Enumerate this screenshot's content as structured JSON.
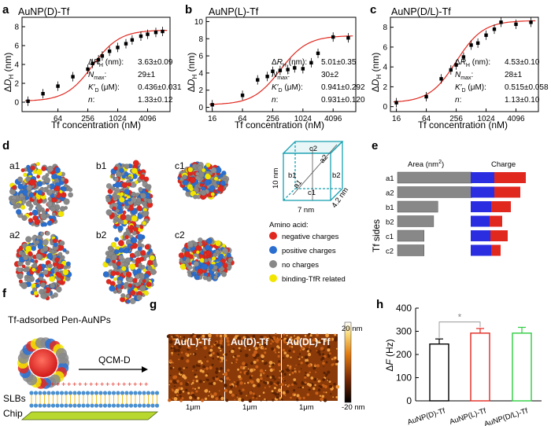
{
  "panel_letters": {
    "a": "a",
    "b": "b",
    "c": "c",
    "d": "d",
    "e": "e",
    "f": "f",
    "g": "g",
    "h": "h"
  },
  "chart_data": [
    {
      "id": "a",
      "type": "scatter",
      "title": "AuNP(D)-Tf",
      "xlabel": "Tf concentration (nM)",
      "ylabel": "ΔD_H (nm)",
      "xscale": "log2",
      "xticks": [
        "64",
        "256",
        "1024",
        "4096"
      ],
      "yticks": [
        "0",
        "2",
        "4",
        "6",
        "8"
      ],
      "ylim": [
        -1,
        9
      ],
      "points": [
        [
          16,
          0.1
        ],
        [
          32,
          0.9
        ],
        [
          64,
          1.7
        ],
        [
          128,
          2.7
        ],
        [
          256,
          3.5
        ],
        [
          320,
          4.1
        ],
        [
          420,
          4.5
        ],
        [
          500,
          4.9
        ],
        [
          700,
          5.4
        ],
        [
          1024,
          5.8
        ],
        [
          1500,
          6.2
        ],
        [
          2000,
          6.6
        ],
        [
          3000,
          7.0
        ],
        [
          4096,
          7.2
        ],
        [
          6000,
          7.4
        ],
        [
          8192,
          7.5
        ]
      ],
      "fit_params": [
        {
          "name": "ΔR_H (nm):",
          "value": "3.63±0.09"
        },
        {
          "name": "N_max:",
          "value": "29±1"
        },
        {
          "name": "K′_D (μM):",
          "value": "0.436±0.031"
        },
        {
          "name": "n:",
          "value": "1.33±0.12"
        }
      ]
    },
    {
      "id": "b",
      "type": "scatter",
      "title": "AuNP(L)-Tf",
      "xlabel": "Tf concentration (nM)",
      "ylabel": "ΔD_H (nm)",
      "xscale": "log2",
      "xticks": [
        "16",
        "64",
        "256",
        "1024",
        "4096"
      ],
      "yticks": [
        "0",
        "2",
        "4",
        "6",
        "8",
        "10"
      ],
      "ylim": [
        -0.5,
        10.5
      ],
      "points": [
        [
          16,
          0.3
        ],
        [
          64,
          1.4
        ],
        [
          128,
          3.2
        ],
        [
          200,
          3.6
        ],
        [
          256,
          4.2
        ],
        [
          360,
          4.3
        ],
        [
          512,
          4.4
        ],
        [
          700,
          4.6
        ],
        [
          1024,
          4.5
        ],
        [
          1500,
          5.2
        ],
        [
          2048,
          6.3
        ],
        [
          4096,
          8.2
        ],
        [
          8192,
          8.1
        ]
      ],
      "fit_params": [
        {
          "name": "ΔR_H (nm):",
          "value": "5.01±0.35"
        },
        {
          "name": "N_max:",
          "value": "30±2"
        },
        {
          "name": "K′_D (μM):",
          "value": "0.941±0.292"
        },
        {
          "name": "n:",
          "value": "0.931±0.120"
        }
      ]
    },
    {
      "id": "c",
      "type": "scatter",
      "title": "AuNP(D/L)-Tf",
      "xlabel": "Tf concentration (nM)",
      "ylabel": "ΔD_H (nm)",
      "xscale": "log2",
      "xticks": [
        "16",
        "64",
        "256",
        "1024",
        "4096"
      ],
      "yticks": [
        "0",
        "2",
        "4",
        "6",
        "8"
      ],
      "ylim": [
        -0.5,
        9
      ],
      "points": [
        [
          16,
          0.4
        ],
        [
          64,
          1.0
        ],
        [
          128,
          2.8
        ],
        [
          200,
          3.7
        ],
        [
          256,
          4.2
        ],
        [
          360,
          5.0
        ],
        [
          512,
          6.2
        ],
        [
          700,
          6.4
        ],
        [
          1024,
          7.2
        ],
        [
          1500,
          7.8
        ],
        [
          2048,
          8.5
        ],
        [
          4096,
          8.3
        ],
        [
          8192,
          8.5
        ]
      ],
      "fit_params": [
        {
          "name": "ΔR_H (nm):",
          "value": "4.53±0.10"
        },
        {
          "name": "N_max:",
          "value": "28±1"
        },
        {
          "name": "K′_D (μM):",
          "value": "0.515±0.058"
        },
        {
          "name": "n:",
          "value": "1.13±0.10"
        }
      ]
    },
    {
      "id": "e",
      "type": "bar",
      "ylabel": "Tf sides",
      "col_area": "Area (nm²)",
      "col_charge": "Charge",
      "categories": [
        "a1",
        "a2",
        "b1",
        "b2",
        "c1",
        "c2"
      ],
      "area": [
        70,
        70,
        38,
        34,
        25,
        25
      ],
      "charge_positive": [
        0.3,
        0.3,
        0.26,
        0.24,
        0.25,
        0.26
      ],
      "charge_negative": [
        0.4,
        0.33,
        0.25,
        0.16,
        0.22,
        0.12
      ]
    },
    {
      "id": "h",
      "type": "bar",
      "ylabel": "ΔF (Hz)",
      "categories": [
        "AuNP(D)-Tf",
        "AuNP(L)-Tf",
        "AuNP(D/L)-Tf"
      ],
      "values": [
        245,
        292,
        292
      ],
      "errors": [
        22,
        20,
        25
      ],
      "colors": [
        "#000000",
        "#e0281f",
        "#2ecc40"
      ],
      "yticks": [
        "0",
        "100",
        "200",
        "300",
        "400"
      ],
      "ylim": [
        0,
        400
      ],
      "significance": "*"
    }
  ],
  "panel_d": {
    "structures": [
      "a1",
      "b1",
      "c1",
      "a2",
      "b2",
      "c2"
    ],
    "box": {
      "face_top": "c2",
      "face_left": "b1",
      "face_right": "b2",
      "face_front": "c1",
      "diag": "a2",
      "diag2": "a1",
      "dim_h": "10 nm",
      "dim_w": "7 nm",
      "dim_d": "4.2 nm"
    },
    "legend_title": "Amino acid:",
    "legend": [
      {
        "label": "negative charges",
        "color": "#e0281f"
      },
      {
        "label": "positive charges",
        "color": "#2a6fd0"
      },
      {
        "label": "no charges",
        "color": "#888888"
      },
      {
        "label": "binding-TfR related",
        "color": "#f2e600"
      }
    ]
  },
  "panel_f": {
    "title": "Tf-adsorbed Pen-AuNPs",
    "arrow_label": "QCM-D",
    "layer1": "SLBs",
    "layer2": "Chip"
  },
  "panel_g": {
    "tiles": [
      "Au(L)-Tf",
      "Au(D)-Tf",
      "Au(DL)-Tf"
    ],
    "scale": "1μm",
    "colorbar_max": "20 nm",
    "colorbar_min": "-20 nm"
  }
}
